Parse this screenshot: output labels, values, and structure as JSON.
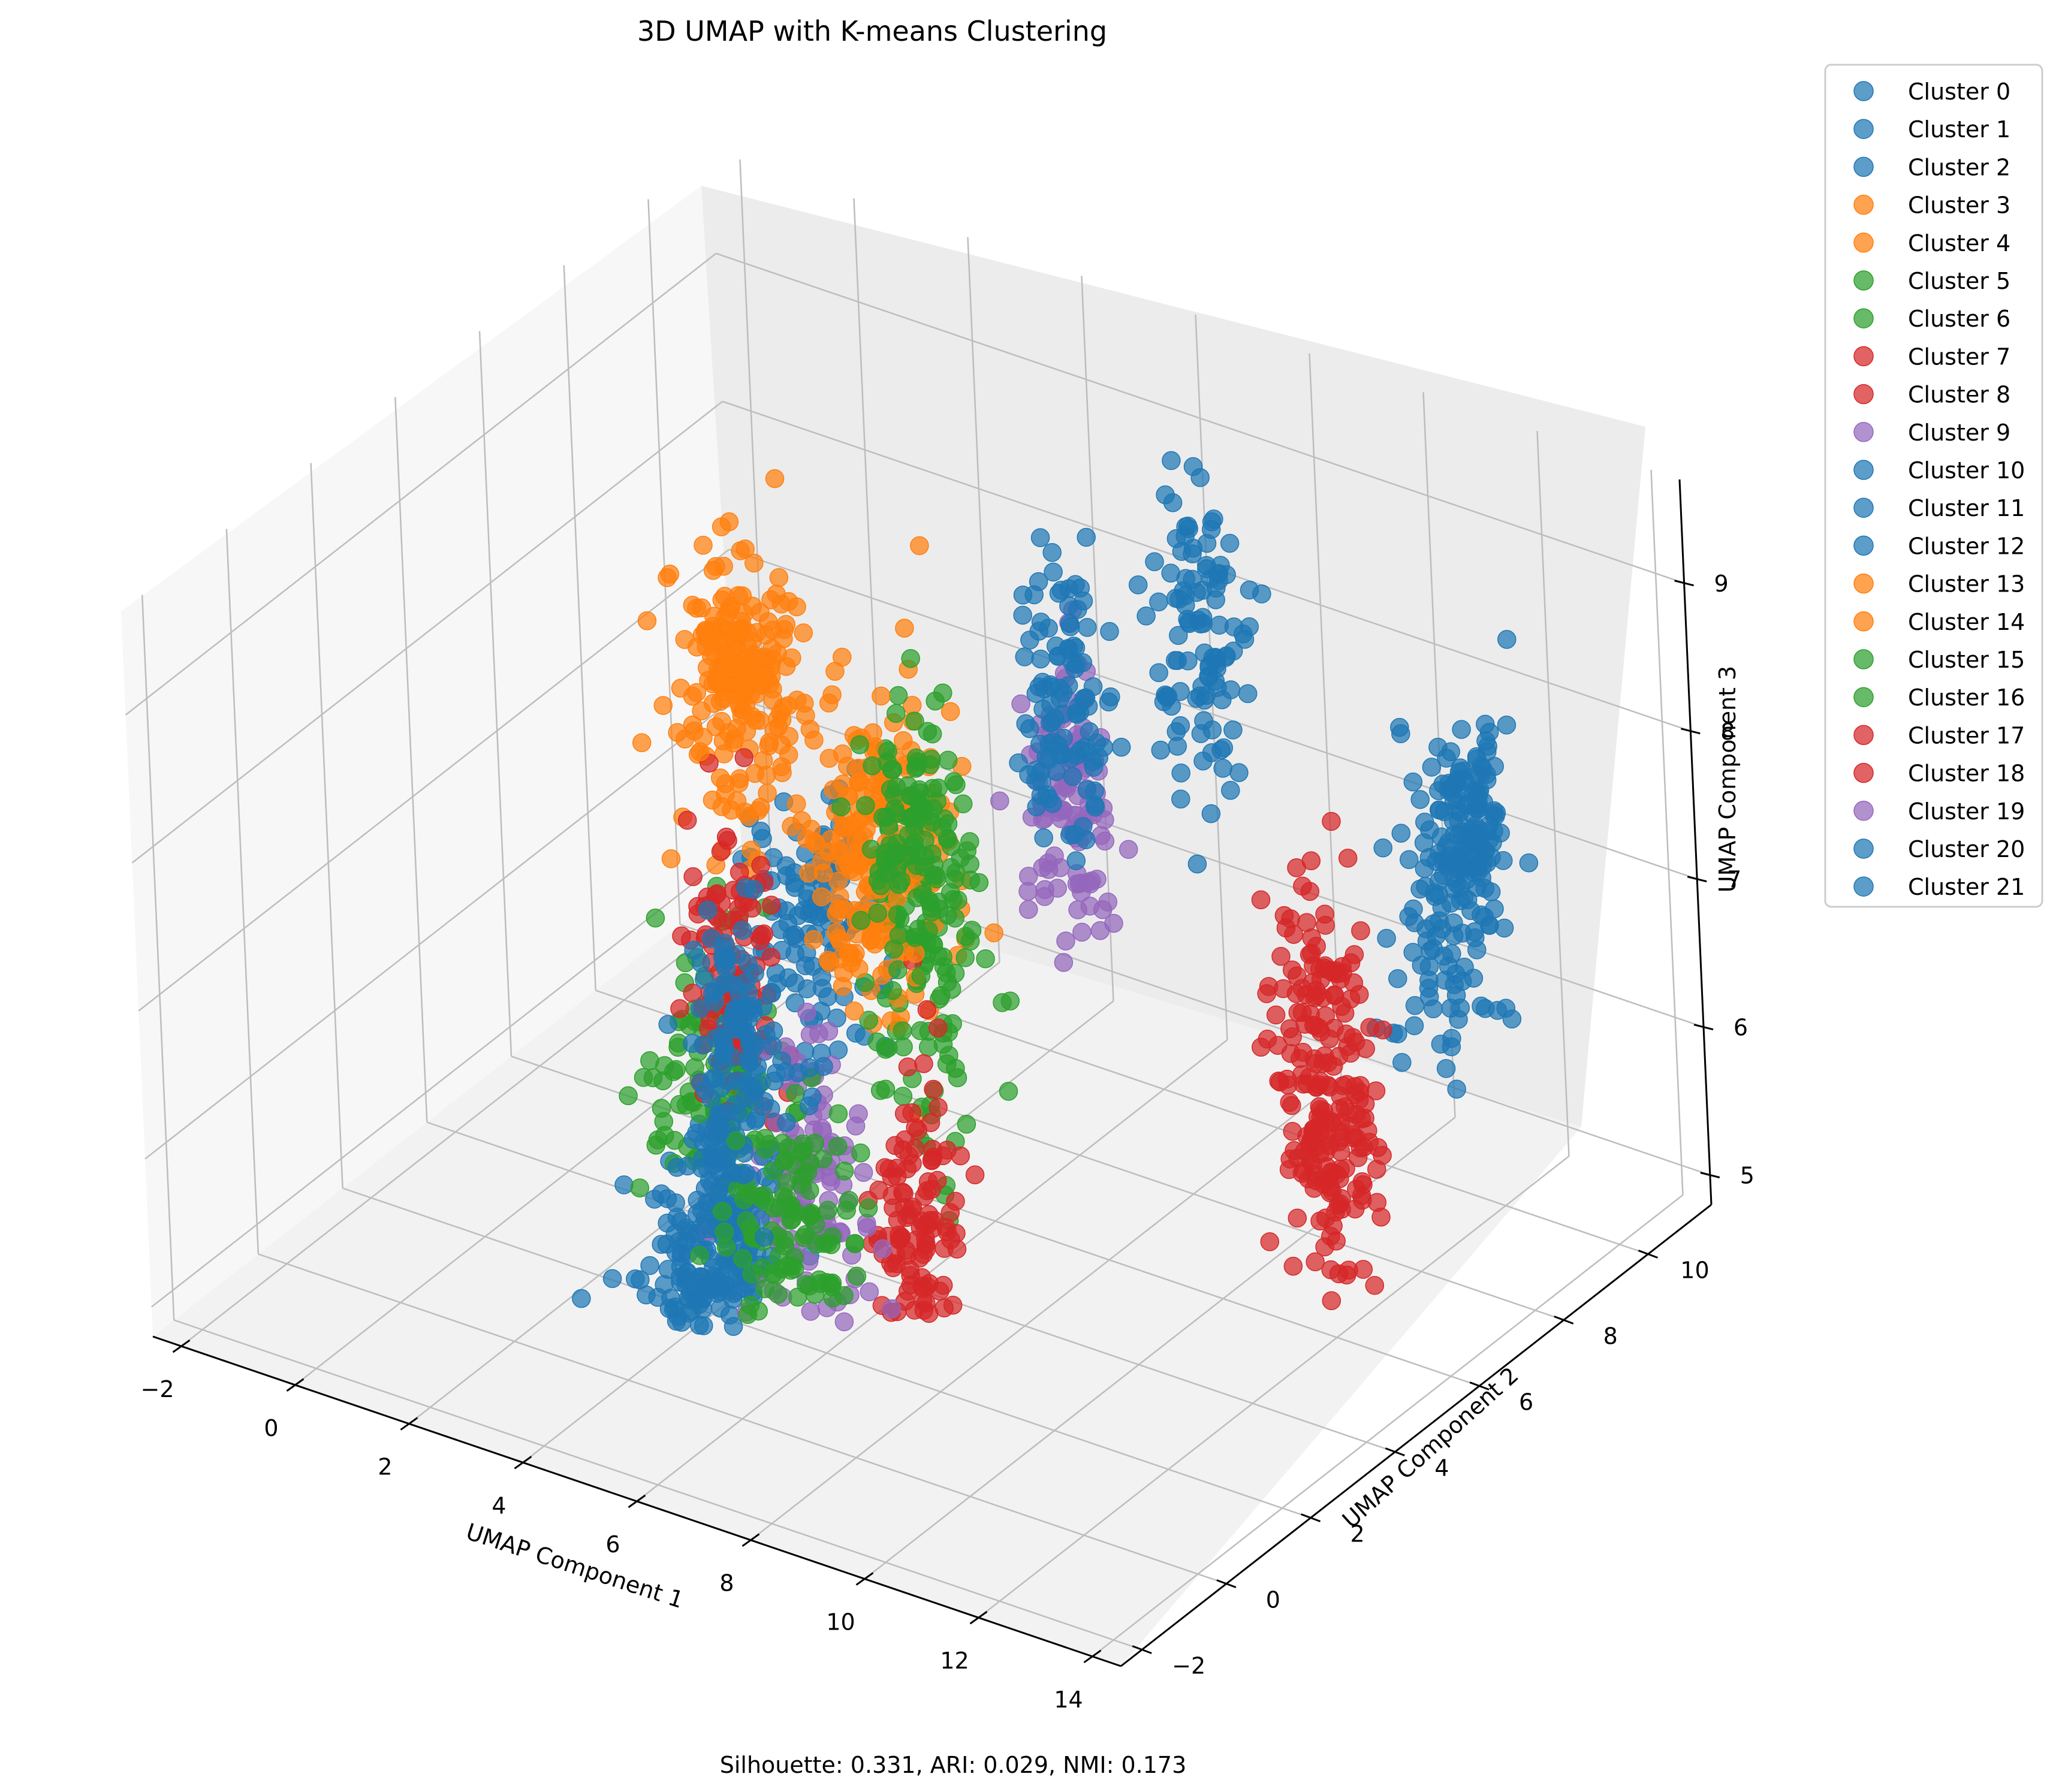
{
  "chart_data": {
    "type": "scatter",
    "projection": "3d",
    "title": "3D UMAP with K-means Clustering",
    "footer": "Silhouette: 0.331, ARI: 0.029, NMI: 0.173",
    "xlabel": "UMAP Component 1",
    "ylabel": "UMAP Component 2",
    "zlabel": "UMAP Component 3",
    "x_ticks": [
      "−2",
      "0",
      "2",
      "4",
      "6",
      "8",
      "10",
      "12",
      "14"
    ],
    "y_ticks": [
      "−2",
      "0",
      "2",
      "4",
      "6",
      "8",
      "10"
    ],
    "z_ticks": [
      "5",
      "6",
      "7",
      "8",
      "9"
    ],
    "xlim": [
      -2.5,
      14.5
    ],
    "ylim": [
      -2.5,
      11.5
    ],
    "zlim": [
      4.8,
      9.7
    ],
    "grid": true,
    "legend_position": "outside-right",
    "series": [
      {
        "name": "Cluster 0",
        "color": "#1f77b4",
        "center": [
          8.4,
          8.2,
          8.6
        ],
        "spread": [
          0.35,
          0.35,
          0.55
        ]
      },
      {
        "name": "Cluster 1",
        "color": "#1f77b4",
        "center": [
          3.6,
          2.2,
          5.0
        ],
        "spread": [
          0.45,
          0.45,
          0.35
        ]
      },
      {
        "name": "Cluster 2",
        "color": "#1f77b4",
        "center": [
          4.2,
          4.5,
          6.9
        ],
        "spread": [
          0.5,
          0.5,
          0.45
        ]
      },
      {
        "name": "Cluster 3",
        "color": "#ff7f0e",
        "center": [
          3.2,
          4.4,
          8.3
        ],
        "spread": [
          0.5,
          0.5,
          0.45
        ]
      },
      {
        "name": "Cluster 4",
        "color": "#ff7f0e",
        "center": [
          5.4,
          4.6,
          7.6
        ],
        "spread": [
          0.55,
          0.55,
          0.55
        ]
      },
      {
        "name": "Cluster 5",
        "color": "#2ca02c",
        "center": [
          3.0,
          3.4,
          6.0
        ],
        "spread": [
          0.45,
          0.45,
          0.45
        ]
      },
      {
        "name": "Cluster 6",
        "color": "#2ca02c",
        "center": [
          6.1,
          4.6,
          6.8
        ],
        "spread": [
          0.4,
          0.4,
          0.6
        ]
      },
      {
        "name": "Cluster 7",
        "color": "#d62728",
        "center": [
          3.1,
          4.0,
          6.5
        ],
        "spread": [
          0.35,
          0.35,
          0.55
        ]
      },
      {
        "name": "Cluster 8",
        "color": "#d62728",
        "center": [
          6.3,
          3.8,
          5.3
        ],
        "spread": [
          0.3,
          0.3,
          0.45
        ]
      },
      {
        "name": "Cluster 9",
        "color": "#9467bd",
        "center": [
          5.1,
          3.0,
          5.7
        ],
        "spread": [
          0.4,
          0.4,
          0.5
        ]
      },
      {
        "name": "Cluster 10",
        "color": "#1f77b4",
        "center": [
          12.8,
          7.8,
          7.4
        ],
        "spread": [
          0.4,
          0.4,
          0.55
        ]
      },
      {
        "name": "Cluster 11",
        "color": "#1f77b4",
        "center": [
          13.0,
          8.3,
          7.9
        ],
        "spread": [
          0.3,
          0.3,
          0.3
        ]
      },
      {
        "name": "Cluster 12",
        "color": "#1f77b4",
        "center": [
          3.8,
          2.8,
          5.4
        ],
        "spread": [
          0.35,
          0.35,
          0.4
        ]
      },
      {
        "name": "Cluster 13",
        "color": "#ff7f0e",
        "center": [
          2.9,
          4.6,
          8.6
        ],
        "spread": [
          0.35,
          0.35,
          0.3
        ]
      },
      {
        "name": "Cluster 14",
        "color": "#ff7f0e",
        "center": [
          4.8,
          5.0,
          7.2
        ],
        "spread": [
          0.4,
          0.4,
          0.4
        ]
      },
      {
        "name": "Cluster 15",
        "color": "#2ca02c",
        "center": [
          4.4,
          3.2,
          5.2
        ],
        "spread": [
          0.5,
          0.5,
          0.4
        ]
      },
      {
        "name": "Cluster 16",
        "color": "#2ca02c",
        "center": [
          5.7,
          4.9,
          7.6
        ],
        "spread": [
          0.35,
          0.35,
          0.45
        ]
      },
      {
        "name": "Cluster 17",
        "color": "#d62728",
        "center": [
          11.2,
          7.0,
          6.6
        ],
        "spread": [
          0.35,
          0.35,
          0.55
        ]
      },
      {
        "name": "Cluster 18",
        "color": "#d62728",
        "center": [
          11.4,
          6.8,
          5.8
        ],
        "spread": [
          0.35,
          0.35,
          0.4
        ]
      },
      {
        "name": "Cluster 19",
        "color": "#9467bd",
        "center": [
          7.2,
          6.6,
          7.6
        ],
        "spread": [
          0.3,
          0.3,
          0.5
        ]
      },
      {
        "name": "Cluster 20",
        "color": "#1f77b4",
        "center": [
          7.0,
          6.8,
          8.2
        ],
        "spread": [
          0.3,
          0.3,
          0.5
        ]
      },
      {
        "name": "Cluster 21",
        "color": "#1f77b4",
        "center": [
          3.5,
          3.6,
          6.2
        ],
        "spread": [
          0.4,
          0.4,
          0.4
        ]
      }
    ]
  }
}
